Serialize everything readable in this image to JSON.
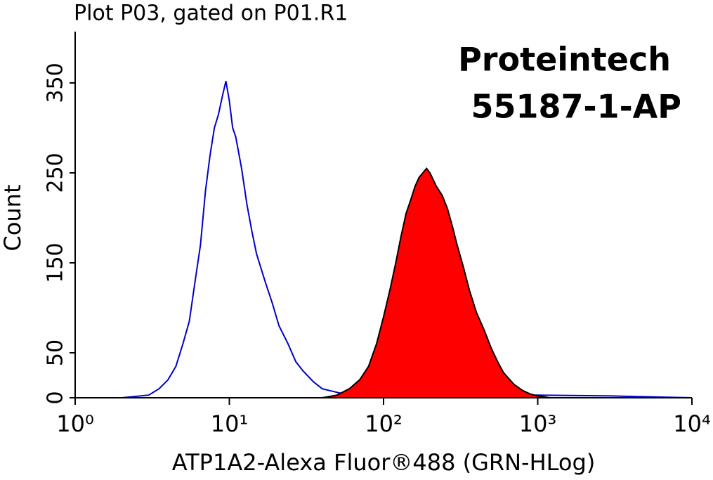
{
  "chart_data": {
    "type": "histogram-overlay",
    "title": "Plot P03, gated on P01.R1",
    "annotations": [
      "Proteintech",
      "55187-1-AP"
    ],
    "x_label": "ATP1A2-Alexa Fluor®488 (GRN-HLog)",
    "y_label": "Count",
    "xscale": "log",
    "xlim": [
      1,
      10000
    ],
    "xticks": [
      {
        "value": 1,
        "label": "10⁰"
      },
      {
        "value": 10,
        "label": "10¹"
      },
      {
        "value": 100,
        "label": "10²"
      },
      {
        "value": 1000,
        "label": "10³"
      },
      {
        "value": 10000,
        "label": "10⁴"
      }
    ],
    "ylim": [
      0,
      407
    ],
    "yticks": [
      0,
      50,
      150,
      250,
      350
    ],
    "series": [
      {
        "color": "#0000cc",
        "fill": false,
        "x": [
          1,
          2,
          3,
          3.5,
          4,
          4.5,
          5,
          5.5,
          6,
          6.5,
          7,
          7.5,
          8,
          8.5,
          9,
          9.5,
          10,
          10.5,
          11,
          12,
          13,
          14,
          15,
          17,
          19,
          21,
          24,
          27,
          30,
          35,
          40,
          50,
          60,
          80,
          100,
          200,
          500,
          1000,
          3000,
          10000
        ],
        "values": [
          0,
          0,
          3,
          10,
          20,
          35,
          60,
          85,
          130,
          170,
          230,
          270,
          300,
          315,
          335,
          352,
          330,
          300,
          290,
          255,
          215,
          185,
          160,
          130,
          105,
          80,
          60,
          40,
          30,
          18,
          10,
          6,
          3,
          2,
          1,
          1,
          2,
          3,
          2,
          0
        ]
      },
      {
        "color": "#ff0000",
        "fill": true,
        "x": [
          40,
          50,
          60,
          70,
          80,
          90,
          100,
          110,
          120,
          130,
          140,
          150,
          160,
          170,
          180,
          190,
          200,
          220,
          240,
          260,
          280,
          300,
          330,
          360,
          400,
          450,
          500,
          550,
          600,
          700,
          800,
          900,
          1000,
          1200
        ],
        "values": [
          0,
          3,
          10,
          20,
          35,
          60,
          90,
          120,
          150,
          180,
          205,
          220,
          235,
          245,
          250,
          255,
          250,
          235,
          225,
          210,
          190,
          170,
          145,
          120,
          95,
          75,
          55,
          40,
          28,
          15,
          8,
          4,
          2,
          0
        ]
      }
    ]
  }
}
